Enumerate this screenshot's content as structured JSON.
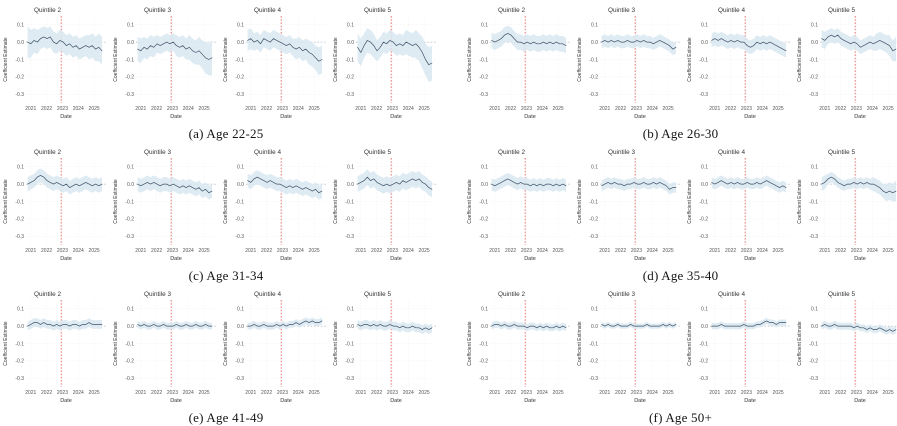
{
  "chart_config": {
    "type": "line",
    "xlabel": "Date",
    "ylabel": "Coefficient Estimate",
    "x_ticks": [
      "2021",
      "2022",
      "2023",
      "2024",
      "2025"
    ],
    "x_tick_values": [
      2021,
      2022,
      2023,
      2024,
      2025
    ],
    "y_ticks": [
      "0.1",
      "0.0",
      "-0.1",
      "-0.2",
      "-0.3"
    ],
    "y_tick_values": [
      0.1,
      0.0,
      -0.1,
      -0.2,
      -0.3
    ],
    "xlim": [
      2020.7,
      2025.75
    ],
    "ylim": [
      -0.35,
      0.15
    ],
    "zero_reference_line": 0.0,
    "vline_x": 2022.92,
    "x_start": 2020.8,
    "x_step": 0.2043,
    "grid": true,
    "legend": "none",
    "colors": {
      "line": "#3d5166",
      "band": "#d9e8f1",
      "vline": "#e05555",
      "zero_line": "#90a0ac",
      "grid": "#ebebeb",
      "tick_text": "#555555",
      "title_text": "#333333",
      "background": "#ffffff"
    }
  },
  "chart_data": [
    {
      "panel_id": "a",
      "caption": "(a) Age 22-25",
      "subplots": [
        {
          "title": "Quintile 2",
          "y": [
            0.0,
            -0.01,
            0.01,
            0.0,
            0.02,
            0.03,
            0.02,
            0.03,
            0.0,
            -0.01,
            0.01,
            0.0,
            -0.02,
            -0.01,
            -0.03,
            -0.02,
            -0.04,
            -0.03,
            -0.02,
            -0.03,
            -0.02,
            -0.04,
            -0.03,
            -0.05
          ],
          "band": [
            0.09,
            0.08,
            0.07,
            0.07,
            0.06,
            0.06,
            0.06,
            0.06,
            0.06,
            0.06,
            0.06,
            0.06,
            0.06,
            0.06,
            0.06,
            0.06,
            0.06,
            0.06,
            0.06,
            0.07,
            0.07,
            0.07,
            0.08,
            0.08
          ]
        },
        {
          "title": "Quintile 3",
          "y": [
            -0.04,
            -0.05,
            -0.03,
            -0.04,
            -0.02,
            -0.03,
            -0.01,
            -0.02,
            -0.01,
            0.0,
            -0.01,
            0.0,
            -0.02,
            -0.03,
            -0.02,
            -0.04,
            -0.03,
            -0.05,
            -0.06,
            -0.05,
            -0.07,
            -0.09,
            -0.1,
            -0.09
          ],
          "band": [
            0.07,
            0.07,
            0.06,
            0.06,
            0.06,
            0.06,
            0.05,
            0.05,
            0.05,
            0.05,
            0.05,
            0.05,
            0.06,
            0.06,
            0.06,
            0.06,
            0.07,
            0.07,
            0.07,
            0.08,
            0.08,
            0.09,
            0.09,
            0.1
          ]
        },
        {
          "title": "Quintile 4",
          "y": [
            0.01,
            0.02,
            0.0,
            0.01,
            -0.01,
            0.02,
            0.01,
            0.0,
            0.02,
            0.01,
            0.0,
            -0.01,
            -0.02,
            -0.01,
            -0.03,
            -0.04,
            -0.03,
            -0.05,
            -0.04,
            -0.06,
            -0.07,
            -0.09,
            -0.11,
            -0.1
          ],
          "band": [
            0.06,
            0.06,
            0.05,
            0.05,
            0.05,
            0.05,
            0.05,
            0.05,
            0.05,
            0.05,
            0.05,
            0.05,
            0.05,
            0.05,
            0.05,
            0.06,
            0.06,
            0.06,
            0.06,
            0.07,
            0.07,
            0.07,
            0.08,
            0.08
          ]
        },
        {
          "title": "Quintile 5",
          "y": [
            -0.03,
            -0.06,
            -0.02,
            0.01,
            0.0,
            -0.02,
            -0.05,
            -0.03,
            0.0,
            -0.01,
            0.01,
            0.0,
            -0.02,
            -0.01,
            -0.02,
            0.0,
            -0.01,
            -0.02,
            -0.01,
            -0.03,
            -0.06,
            -0.1,
            -0.13,
            -0.12
          ],
          "band": [
            0.08,
            0.08,
            0.07,
            0.07,
            0.07,
            0.07,
            0.06,
            0.06,
            0.06,
            0.06,
            0.06,
            0.06,
            0.06,
            0.06,
            0.06,
            0.07,
            0.07,
            0.07,
            0.08,
            0.08,
            0.09,
            0.09,
            0.1,
            0.1
          ]
        }
      ]
    },
    {
      "panel_id": "b",
      "caption": "(b) Age 26-30",
      "subplots": [
        {
          "title": "Quintile 2",
          "y": [
            0.01,
            0.0,
            0.01,
            0.02,
            0.04,
            0.05,
            0.04,
            0.02,
            0.0,
            0.0,
            -0.01,
            0.0,
            -0.01,
            0.0,
            -0.01,
            -0.01,
            0.0,
            -0.01,
            0.0,
            -0.01,
            0.0,
            -0.01,
            -0.01,
            -0.02
          ],
          "band": 0.045
        },
        {
          "title": "Quintile 3",
          "y": [
            0.0,
            0.01,
            0.0,
            0.01,
            0.0,
            0.01,
            0.0,
            0.0,
            0.01,
            0.0,
            0.0,
            0.01,
            0.0,
            0.01,
            0.0,
            0.0,
            -0.01,
            0.0,
            0.01,
            0.0,
            -0.01,
            -0.02,
            -0.04,
            -0.03
          ],
          "band": 0.035
        },
        {
          "title": "Quintile 4",
          "y": [
            0.01,
            0.02,
            0.01,
            0.02,
            0.01,
            0.0,
            0.01,
            0.0,
            0.01,
            0.0,
            0.0,
            -0.02,
            -0.03,
            -0.02,
            0.0,
            -0.01,
            0.0,
            -0.01,
            0.0,
            -0.01,
            -0.02,
            -0.03,
            -0.04,
            -0.05
          ],
          "band": 0.04
        },
        {
          "title": "Quintile 5",
          "y": [
            0.02,
            0.01,
            0.03,
            0.04,
            0.03,
            0.04,
            0.02,
            0.01,
            0.0,
            -0.01,
            0.0,
            -0.01,
            -0.03,
            -0.02,
            -0.01,
            0.0,
            -0.01,
            0.0,
            0.01,
            0.0,
            -0.01,
            -0.02,
            -0.05,
            -0.04
          ],
          "band": [
            0.05,
            0.05,
            0.04,
            0.04,
            0.04,
            0.04,
            0.04,
            0.04,
            0.04,
            0.04,
            0.04,
            0.04,
            0.04,
            0.04,
            0.04,
            0.04,
            0.04,
            0.05,
            0.05,
            0.05,
            0.05,
            0.06,
            0.06,
            0.07
          ]
        }
      ]
    },
    {
      "panel_id": "c",
      "caption": "(c) Age 31-34",
      "subplots": [
        {
          "title": "Quintile 2",
          "y": [
            0.0,
            0.01,
            0.02,
            0.04,
            0.05,
            0.04,
            0.02,
            0.01,
            0.0,
            0.01,
            0.0,
            -0.01,
            0.0,
            -0.02,
            -0.01,
            0.0,
            -0.01,
            0.0,
            0.01,
            0.0,
            -0.01,
            0.0,
            -0.01,
            0.0
          ],
          "band": 0.04
        },
        {
          "title": "Quintile 3",
          "y": [
            0.0,
            -0.01,
            0.0,
            0.01,
            0.0,
            0.01,
            0.0,
            -0.01,
            0.0,
            0.0,
            -0.01,
            0.0,
            -0.01,
            -0.02,
            -0.01,
            -0.02,
            -0.01,
            -0.02,
            -0.03,
            -0.02,
            -0.04,
            -0.03,
            -0.05,
            -0.04
          ],
          "band": 0.04
        },
        {
          "title": "Quintile 4",
          "y": [
            0.02,
            0.01,
            0.03,
            0.04,
            0.03,
            0.02,
            0.01,
            0.02,
            0.01,
            0.0,
            0.0,
            -0.01,
            -0.02,
            -0.01,
            -0.02,
            -0.01,
            -0.02,
            -0.03,
            -0.02,
            -0.03,
            -0.04,
            -0.03,
            -0.05,
            -0.04
          ],
          "band": 0.04
        },
        {
          "title": "Quintile 5",
          "y": [
            0.0,
            0.01,
            0.02,
            0.04,
            0.02,
            0.03,
            0.01,
            0.0,
            -0.01,
            0.0,
            -0.01,
            0.0,
            0.01,
            0.0,
            0.02,
            0.01,
            0.02,
            0.03,
            0.02,
            0.03,
            0.01,
            0.0,
            -0.02,
            -0.03
          ],
          "band": 0.045
        }
      ]
    },
    {
      "panel_id": "d",
      "caption": "(d) Age 35-40",
      "subplots": [
        {
          "title": "Quintile 2",
          "y": [
            0.0,
            -0.01,
            0.0,
            0.01,
            0.02,
            0.03,
            0.02,
            0.01,
            0.0,
            0.01,
            0.0,
            0.0,
            -0.01,
            0.0,
            -0.01,
            0.0,
            -0.01,
            0.0,
            0.0,
            -0.01,
            0.0,
            -0.01,
            0.0,
            -0.01
          ],
          "band": 0.035
        },
        {
          "title": "Quintile 3",
          "y": [
            -0.01,
            0.0,
            0.01,
            0.0,
            0.01,
            0.0,
            0.0,
            -0.01,
            0.0,
            0.0,
            0.01,
            0.0,
            0.0,
            0.01,
            0.0,
            0.0,
            0.01,
            0.0,
            0.01,
            0.0,
            -0.01,
            -0.03,
            -0.02,
            -0.02
          ],
          "band": 0.03
        },
        {
          "title": "Quintile 4",
          "y": [
            0.01,
            0.0,
            0.01,
            0.02,
            0.01,
            0.0,
            0.01,
            0.0,
            0.01,
            0.0,
            0.0,
            0.01,
            0.0,
            0.0,
            0.01,
            0.0,
            0.01,
            0.02,
            0.01,
            0.0,
            -0.01,
            -0.02,
            -0.01,
            -0.02
          ],
          "band": 0.03
        },
        {
          "title": "Quintile 5",
          "y": [
            0.0,
            0.01,
            0.03,
            0.04,
            0.03,
            0.01,
            0.0,
            -0.01,
            0.0,
            0.0,
            0.01,
            0.0,
            0.01,
            0.0,
            0.01,
            0.0,
            0.0,
            -0.01,
            -0.02,
            -0.04,
            -0.05,
            -0.04,
            -0.05,
            -0.04
          ],
          "band": [
            0.04,
            0.04,
            0.03,
            0.03,
            0.03,
            0.03,
            0.03,
            0.03,
            0.03,
            0.03,
            0.03,
            0.03,
            0.03,
            0.03,
            0.03,
            0.03,
            0.04,
            0.04,
            0.04,
            0.04,
            0.05,
            0.05,
            0.05,
            0.06
          ]
        }
      ]
    },
    {
      "panel_id": "e",
      "caption": "(e) Age 41-49",
      "subplots": [
        {
          "title": "Quintile 2",
          "y": [
            0.0,
            0.01,
            0.02,
            0.02,
            0.01,
            0.02,
            0.01,
            0.01,
            0.0,
            0.01,
            0.0,
            0.01,
            0.01,
            0.0,
            0.01,
            0.01,
            0.0,
            0.01,
            0.01,
            0.02,
            0.01,
            0.01,
            0.01,
            0.01
          ],
          "band": 0.025
        },
        {
          "title": "Quintile 3",
          "y": [
            0.01,
            0.0,
            0.01,
            0.0,
            0.0,
            0.01,
            0.0,
            0.0,
            0.01,
            0.0,
            0.0,
            0.0,
            0.01,
            0.0,
            0.0,
            0.01,
            0.0,
            0.0,
            0.01,
            0.0,
            0.0,
            0.01,
            0.0,
            0.0
          ],
          "band": 0.02
        },
        {
          "title": "Quintile 4",
          "y": [
            0.0,
            0.0,
            0.01,
            0.0,
            0.0,
            0.01,
            0.0,
            0.0,
            0.0,
            0.01,
            0.0,
            0.01,
            0.0,
            0.01,
            0.01,
            0.02,
            0.01,
            0.02,
            0.03,
            0.02,
            0.03,
            0.02,
            0.02,
            0.03
          ],
          "band": 0.02
        },
        {
          "title": "Quintile 5",
          "y": [
            0.01,
            0.0,
            0.01,
            0.01,
            0.0,
            0.01,
            0.0,
            0.01,
            0.0,
            0.0,
            0.01,
            0.0,
            0.0,
            -0.01,
            0.0,
            -0.01,
            -0.01,
            0.0,
            -0.01,
            -0.01,
            -0.02,
            -0.01,
            -0.02,
            -0.01
          ],
          "band": 0.025
        }
      ]
    },
    {
      "panel_id": "f",
      "caption": "(f) Age 50+",
      "subplots": [
        {
          "title": "Quintile 2",
          "y": [
            0.0,
            0.01,
            0.01,
            0.0,
            0.01,
            0.0,
            0.0,
            0.01,
            0.0,
            0.0,
            0.0,
            -0.01,
            0.0,
            0.0,
            -0.01,
            0.0,
            -0.01,
            0.0,
            -0.01,
            -0.01,
            0.0,
            -0.01,
            0.0,
            -0.01
          ],
          "band": 0.02
        },
        {
          "title": "Quintile 3",
          "y": [
            0.01,
            0.0,
            0.01,
            0.0,
            0.0,
            0.01,
            0.0,
            0.0,
            0.0,
            0.01,
            0.0,
            0.0,
            0.0,
            0.0,
            0.01,
            0.0,
            0.0,
            0.0,
            0.0,
            0.01,
            0.0,
            0.01,
            0.0,
            0.01
          ],
          "band": 0.015
        },
        {
          "title": "Quintile 4",
          "y": [
            0.0,
            0.0,
            0.0,
            0.01,
            0.0,
            0.0,
            0.0,
            0.0,
            0.0,
            0.0,
            0.01,
            0.0,
            0.0,
            0.0,
            0.01,
            0.01,
            0.02,
            0.03,
            0.02,
            0.02,
            0.01,
            0.02,
            0.02,
            0.02
          ],
          "band": 0.018
        },
        {
          "title": "Quintile 5",
          "y": [
            0.0,
            0.01,
            0.0,
            0.0,
            0.01,
            0.0,
            0.0,
            0.0,
            0.0,
            0.0,
            -0.01,
            0.0,
            -0.01,
            -0.01,
            -0.02,
            -0.01,
            -0.02,
            -0.02,
            -0.01,
            -0.02,
            -0.03,
            -0.02,
            -0.03,
            -0.02
          ],
          "band": 0.02
        }
      ]
    }
  ]
}
